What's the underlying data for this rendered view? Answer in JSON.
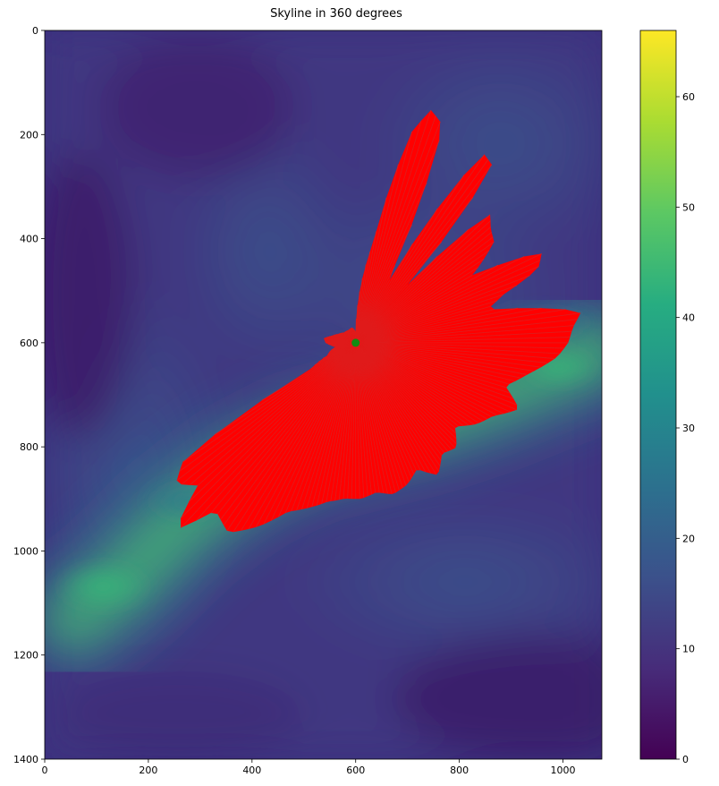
{
  "chart_data": {
    "type": "heatmap",
    "title": "Skyline in 360 degrees",
    "xlabel": "",
    "ylabel": "",
    "xlim": [
      0,
      1075
    ],
    "ylim": [
      1400,
      0
    ],
    "x_ticks": [
      0,
      200,
      400,
      600,
      800,
      1000
    ],
    "y_ticks": [
      0,
      200,
      400,
      600,
      800,
      1000,
      1200,
      1400
    ],
    "colormap": "viridis",
    "colorbar": {
      "range": [
        0,
        66
      ],
      "ticks": [
        0,
        10,
        20,
        30,
        40,
        50,
        60
      ]
    },
    "ridge": {
      "x": [
        60,
        150,
        260,
        380,
        500,
        620,
        740,
        860,
        960,
        1060
      ],
      "y": [
        1130,
        1060,
        950,
        860,
        800,
        770,
        740,
        700,
        660,
        620
      ],
      "colour": "#4fc46a"
    },
    "observer": {
      "x": 600,
      "y": 600,
      "colour": "#128c12"
    },
    "skyline_colour": "#e01b1b",
    "skyline_fill_colour": "#ff0000",
    "skyline": [
      {
        "angle": -90,
        "dist": 20
      },
      {
        "angle": -80,
        "dist": 195
      },
      {
        "angle": -75,
        "dist": 420
      },
      {
        "angle": -72,
        "dist": 470
      },
      {
        "angle": -68,
        "dist": 450
      },
      {
        "angle": -62,
        "dist": 110
      },
      {
        "angle": -56,
        "dist": 440
      },
      {
        "angle": -52,
        "dist": 430
      },
      {
        "angle": -48,
        "dist": 150
      },
      {
        "angle": -44,
        "dist": 360
      },
      {
        "angle": -40,
        "dist": 340
      },
      {
        "angle": -36,
        "dist": 330
      },
      {
        "angle": -30,
        "dist": 260
      },
      {
        "angle": -26,
        "dist": 400
      },
      {
        "angle": -22,
        "dist": 380
      },
      {
        "angle": -18,
        "dist": 300
      },
      {
        "angle": -14,
        "dist": 260
      },
      {
        "angle": -8,
        "dist": 440
      },
      {
        "angle": -4,
        "dist": 420
      },
      {
        "angle": 0,
        "dist": 410
      },
      {
        "angle": 4,
        "dist": 390
      },
      {
        "angle": 10,
        "dist": 340
      },
      {
        "angle": 16,
        "dist": 300
      },
      {
        "angle": 22,
        "dist": 340
      },
      {
        "angle": 28,
        "dist": 300
      },
      {
        "angle": 34,
        "dist": 280
      },
      {
        "angle": 40,
        "dist": 250
      },
      {
        "angle": 46,
        "dist": 280
      },
      {
        "angle": 52,
        "dist": 270
      },
      {
        "angle": 58,
        "dist": 300
      },
      {
        "angle": 64,
        "dist": 270
      },
      {
        "angle": 70,
        "dist": 290
      },
      {
        "angle": 76,
        "dist": 300
      },
      {
        "angle": 82,
        "dist": 290
      },
      {
        "angle": 88,
        "dist": 300
      },
      {
        "angle": 94,
        "dist": 300
      },
      {
        "angle": 100,
        "dist": 310
      },
      {
        "angle": 106,
        "dist": 330
      },
      {
        "angle": 112,
        "dist": 350
      },
      {
        "angle": 118,
        "dist": 400
      },
      {
        "angle": 124,
        "dist": 440
      },
      {
        "angle": 130,
        "dist": 420
      },
      {
        "angle": 134,
        "dist": 500
      },
      {
        "angle": 138,
        "dist": 410
      },
      {
        "angle": 142,
        "dist": 440
      },
      {
        "angle": 146,
        "dist": 400
      },
      {
        "angle": 150,
        "dist": 100
      },
      {
        "angle": 156,
        "dist": 60
      },
      {
        "angle": 162,
        "dist": 52
      },
      {
        "angle": 168,
        "dist": 40
      },
      {
        "angle": 174,
        "dist": 48
      },
      {
        "angle": 180,
        "dist": 58
      },
      {
        "angle": 188,
        "dist": 62
      },
      {
        "angle": 196,
        "dist": 48
      },
      {
        "angle": 206,
        "dist": 38
      },
      {
        "angle": 220,
        "dist": 30
      },
      {
        "angle": 240,
        "dist": 28
      },
      {
        "angle": 256,
        "dist": 30
      },
      {
        "angle": 264,
        "dist": 25
      }
    ]
  }
}
